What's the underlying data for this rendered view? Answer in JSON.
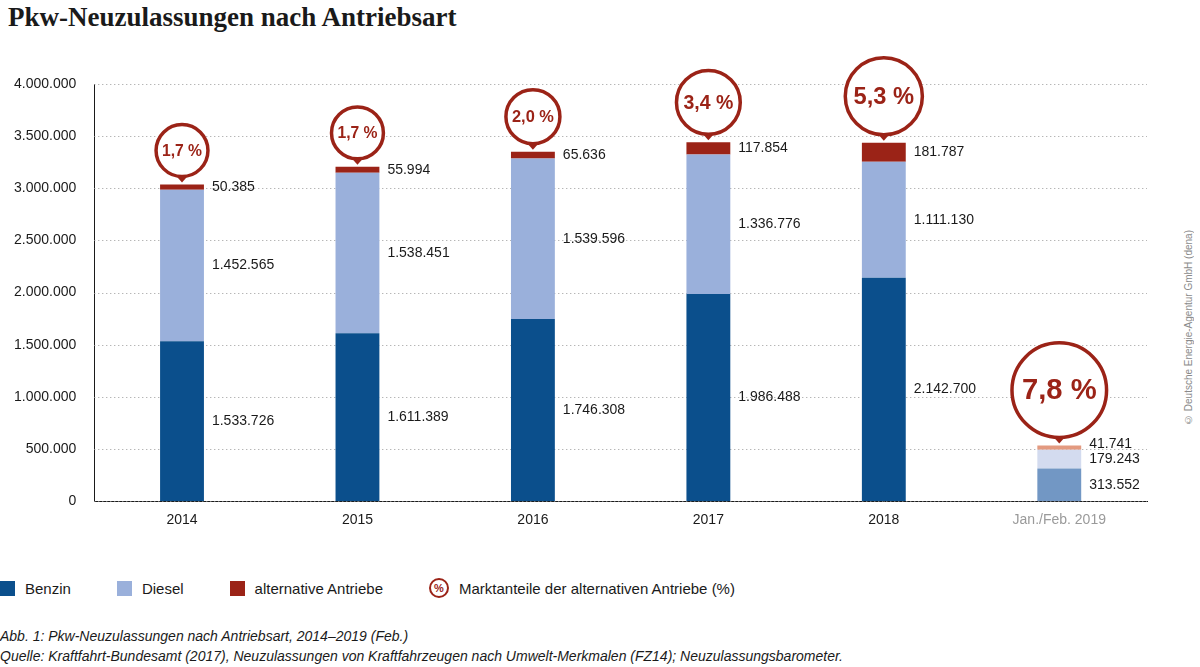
{
  "chart_data": {
    "type": "bar",
    "title": "Pkw-Neuzulassungen nach Antriebsart",
    "categories": [
      "2014",
      "2015",
      "2016",
      "2017",
      "2018",
      "Jan./Feb. 2019"
    ],
    "series": [
      {
        "name": "Benzin",
        "color": "#0b4f8c",
        "colors": [
          "#0b4f8c",
          "#0b4f8c",
          "#0b4f8c",
          "#0b4f8c",
          "#0b4f8c",
          "#7297c4"
        ],
        "values": [
          1533726,
          1611389,
          1746308,
          1986488,
          2142700,
          313552
        ],
        "value_labels": [
          "1.533.726",
          "1.611.389",
          "1.746.308",
          "1.986.488",
          "2.142.700",
          "313.552"
        ]
      },
      {
        "name": "Diesel",
        "color": "#9ab0db",
        "colors": [
          "#9ab0db",
          "#9ab0db",
          "#9ab0db",
          "#9ab0db",
          "#9ab0db",
          "#d3dbef"
        ],
        "values": [
          1452565,
          1538451,
          1539596,
          1336776,
          1111130,
          179243
        ],
        "value_labels": [
          "1.452.565",
          "1.538.451",
          "1.539.596",
          "1.336.776",
          "1.111.130",
          "179.243"
        ]
      },
      {
        "name": "alternative Antriebe",
        "color": "#9b2317",
        "colors": [
          "#9b2317",
          "#9b2317",
          "#9b2317",
          "#9b2317",
          "#9b2317",
          "#e39a80"
        ],
        "values": [
          50385,
          55994,
          65636,
          117854,
          181787,
          41741
        ],
        "value_labels": [
          "50.385",
          "55.994",
          "65.636",
          "117.854",
          "181.787",
          "41.741"
        ]
      }
    ],
    "market_share": {
      "name": "Marktanteile der alternativen Antriebe (%)",
      "symbol": "%",
      "color": "#9b2317",
      "values": [
        1.7,
        1.7,
        2.0,
        3.4,
        5.3,
        7.8
      ],
      "value_labels": [
        "1,7 %",
        "1,7 %",
        "2,0 %",
        "3,4 %",
        "5,3 %",
        "7,8 %"
      ]
    },
    "stacked": true,
    "data_labels": true,
    "grid": true,
    "legend": "bottom",
    "ylim": [
      0,
      4000000
    ],
    "yticks": [
      0,
      {
        "value": 500000,
        "label": "500.000"
      },
      {
        "value": 1000000,
        "label": "1.000.000"
      },
      {
        "value": 1500000,
        "label": "1.500.000"
      },
      {
        "value": 2000000,
        "label": "2.000.000"
      },
      {
        "value": 2500000,
        "label": "2.500.000"
      },
      {
        "value": 3000000,
        "label": "3.000.000"
      },
      {
        "value": 3500000,
        "label": "3.500.000"
      },
      {
        "value": 4000000,
        "label": "4.000.000"
      }
    ],
    "caption": "Abb. 1: Pkw-Neuzulassungen nach Antriebsart, 2014–2019 (Feb.)",
    "source": "Quelle: Kraftfahrt-Bundesamt (2017), Neuzulassungen von Kraftfahrzeugen nach Umwelt-Merkmalen (FZ14); Neuzulassungsbarometer.",
    "copyright": "© Deutsche Energie-Agentur GmbH (dena)"
  }
}
